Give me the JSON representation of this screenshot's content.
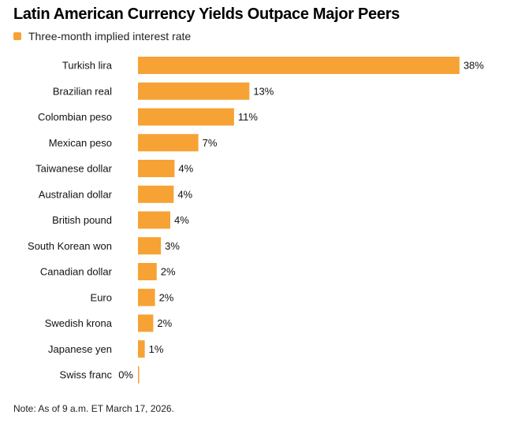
{
  "chart_data": {
    "type": "bar",
    "orientation": "horizontal",
    "title": "Latin American Currency Yields Outpace Major Peers",
    "legend": [
      {
        "label": "Three-month implied interest rate",
        "color": "#F7A234"
      }
    ],
    "categories": [
      "Turkish lira",
      "Brazilian real",
      "Colombian peso",
      "Mexican peso",
      "Taiwanese dollar",
      "Australian dollar",
      "British pound",
      "South Korean won",
      "Canadian dollar",
      "Euro",
      "Swedish krona",
      "Japanese yen",
      "Swiss franc"
    ],
    "values": [
      37.8,
      13.1,
      11.3,
      7.1,
      4.3,
      4.2,
      3.8,
      2.7,
      2.2,
      2.0,
      1.8,
      0.8,
      0.1
    ],
    "value_labels": [
      "38%",
      "13%",
      "11%",
      "7%",
      "4%",
      "4%",
      "4%",
      "3%",
      "2%",
      "2%",
      "2%",
      "1%",
      "0%"
    ],
    "xlim": [
      0,
      38
    ],
    "grid": false
  },
  "note": "Note: As of 9 a.m. ET March 17, 2026.",
  "colors": {
    "bar": "#F7A234"
  }
}
